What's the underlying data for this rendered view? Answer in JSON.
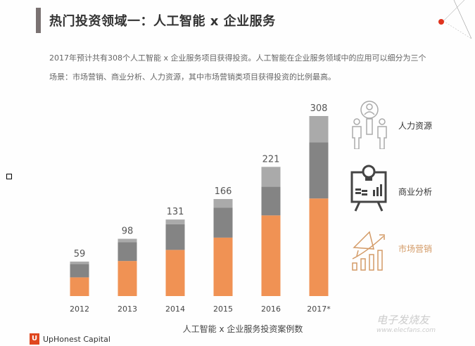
{
  "title": "热门投资领域一：人工智能 x 企业服务",
  "paragraph": [
    "2017年预计共有308个人工智能 x 企业服务项目获得投资。人工智能在企业服务领域中的应用可以细分为三个",
    "场景：市场营销、商业分析、人力资源，其中市场营销类项目获得投资的比例最高。"
  ],
  "legend": [
    {
      "label": "人力资源",
      "icon": "people-search-icon",
      "color": "#aaaaaa"
    },
    {
      "label": "商业分析",
      "icon": "monitor-lightbulb-chart-icon",
      "color": "#848484"
    },
    {
      "label": "市场营销",
      "icon": "megaphone-growth-icon",
      "color": "#f09254"
    }
  ],
  "chart_data": {
    "type": "bar",
    "stacked": true,
    "categories": [
      "2012",
      "2013",
      "2014",
      "2015",
      "2016",
      "2017*"
    ],
    "totals": [
      "59",
      "98",
      "131",
      "166",
      "221",
      "308"
    ],
    "series": [
      {
        "name": "市场营销",
        "color": "#f09254",
        "values": [
          32,
          60,
          79,
          100,
          138,
          167
        ]
      },
      {
        "name": "商业分析",
        "color": "#848484",
        "values": [
          23,
          32,
          44,
          51,
          49,
          96
        ]
      },
      {
        "name": "人力资源",
        "color": "#aaaaaa",
        "values": [
          4,
          6,
          8,
          15,
          34,
          45
        ]
      }
    ],
    "xlabel": "人工智能 x 企业服务投资案例数",
    "ylim": [
      0,
      308
    ],
    "grid": false,
    "legend_position": "right"
  },
  "logo": {
    "mark": "U",
    "text": "UpHonest Capital"
  },
  "watermark": {
    "text": "电子发烧友",
    "url": "www.elecfans.com"
  }
}
